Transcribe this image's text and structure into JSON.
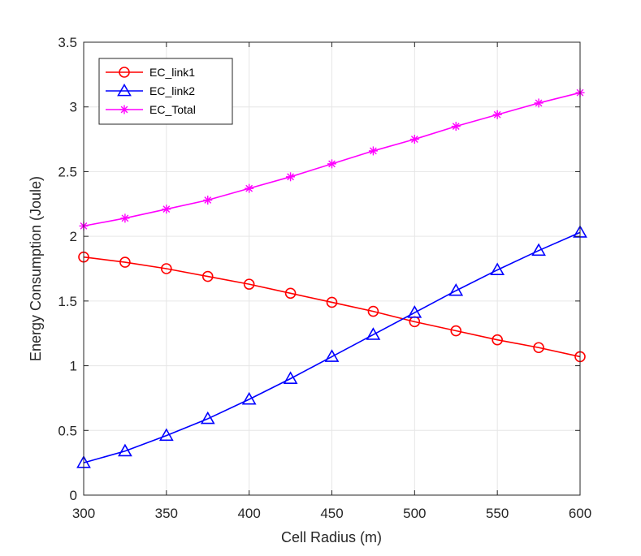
{
  "chart_data": {
    "type": "line",
    "xlabel": "Cell Radius (m)",
    "ylabel": "Energy Consumption (Joule)",
    "xlim": [
      300,
      600
    ],
    "ylim": [
      0,
      3.5
    ],
    "xticks": [
      300,
      350,
      400,
      450,
      500,
      550,
      600
    ],
    "yticks": [
      0,
      0.5,
      1,
      1.5,
      2,
      2.5,
      3,
      3.5
    ],
    "xtick_labels": [
      "300",
      "350",
      "400",
      "450",
      "500",
      "550",
      "600"
    ],
    "ytick_labels": [
      "0",
      "0.5",
      "1",
      "1.5",
      "2",
      "2.5",
      "3",
      "3.5"
    ],
    "grid": true,
    "legend_position": "top-left",
    "x": [
      300,
      325,
      350,
      375,
      400,
      425,
      450,
      475,
      500,
      525,
      550,
      575,
      600
    ],
    "series": [
      {
        "name": "EC_link1",
        "color": "#ff0000",
        "marker": "circle",
        "values": [
          1.84,
          1.8,
          1.75,
          1.69,
          1.63,
          1.56,
          1.49,
          1.42,
          1.34,
          1.27,
          1.2,
          1.14,
          1.07
        ]
      },
      {
        "name": "EC_link2",
        "color": "#0000ff",
        "marker": "triangle",
        "values": [
          0.25,
          0.34,
          0.46,
          0.59,
          0.74,
          0.9,
          1.07,
          1.24,
          1.41,
          1.58,
          1.74,
          1.89,
          2.03
        ]
      },
      {
        "name": "EC_Total",
        "color": "#ff00ff",
        "marker": "asterisk",
        "values": [
          2.08,
          2.14,
          2.21,
          2.28,
          2.37,
          2.46,
          2.56,
          2.66,
          2.75,
          2.85,
          2.94,
          3.03,
          3.11
        ]
      }
    ]
  }
}
